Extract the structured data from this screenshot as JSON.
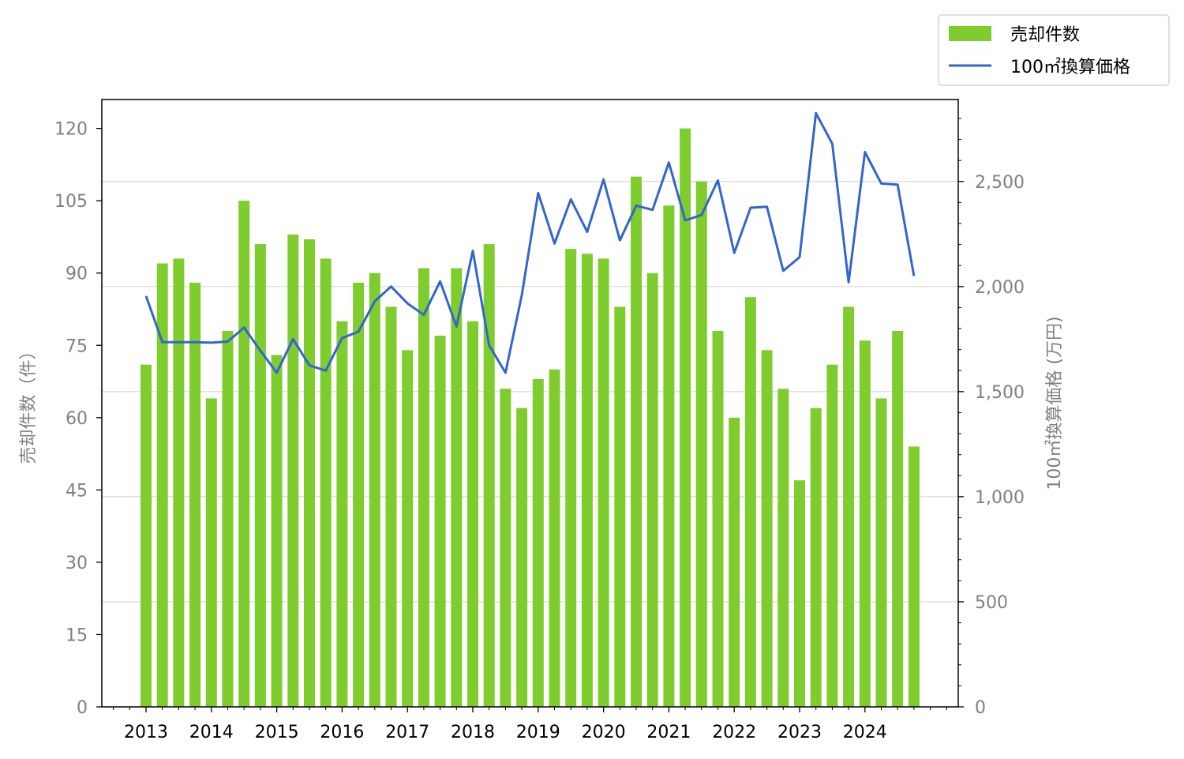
{
  "chart_data": {
    "type": "bar",
    "x": [
      "2013 Q1",
      "2013 Q2",
      "2013 Q3",
      "2013 Q4",
      "2014 Q1",
      "2014 Q2",
      "2014 Q3",
      "2014 Q4",
      "2015 Q1",
      "2015 Q2",
      "2015 Q3",
      "2015 Q4",
      "2016 Q1",
      "2016 Q2",
      "2016 Q3",
      "2016 Q4",
      "2017 Q1",
      "2017 Q2",
      "2017 Q3",
      "2017 Q4",
      "2018 Q1",
      "2018 Q2",
      "2018 Q3",
      "2018 Q4",
      "2019 Q1",
      "2019 Q2",
      "2019 Q3",
      "2019 Q4",
      "2020 Q1",
      "2020 Q2",
      "2020 Q3",
      "2020 Q4",
      "2021 Q1",
      "2021 Q2",
      "2021 Q3",
      "2021 Q4",
      "2022 Q1",
      "2022 Q2",
      "2022 Q3",
      "2022 Q4",
      "2023 Q1",
      "2023 Q2",
      "2023 Q3",
      "2023 Q4",
      "2024 Q1",
      "2024 Q2",
      "2024 Q3",
      "2024 Q4"
    ],
    "xticks": [
      "2013",
      "2014",
      "2015",
      "2016",
      "2017",
      "2018",
      "2019",
      "2020",
      "2021",
      "2022",
      "2023",
      "2024"
    ],
    "series": [
      {
        "name": "売却件数",
        "type": "bar",
        "axis": "left",
        "color": "#7fcc2e",
        "values": [
          71,
          92,
          93,
          88,
          64,
          78,
          105,
          96,
          73,
          98,
          97,
          93,
          80,
          88,
          90,
          83,
          74,
          91,
          77,
          91,
          80,
          96,
          66,
          62,
          68,
          70,
          95,
          94,
          93,
          83,
          110,
          90,
          104,
          120,
          109,
          78,
          60,
          85,
          74,
          66,
          47,
          62,
          71,
          83,
          76,
          64,
          78,
          54
        ]
      },
      {
        "name": "100㎡換算価格",
        "type": "line",
        "axis": "right",
        "color": "#3366cc",
        "values": [
          1955,
          1735,
          1735,
          1735,
          1733,
          1738,
          1805,
          1695,
          1590,
          1750,
          1625,
          1600,
          1755,
          1785,
          1930,
          2000,
          1920,
          1865,
          2025,
          1810,
          2170,
          1720,
          1590,
          1960,
          2445,
          2205,
          2415,
          2260,
          2510,
          2220,
          2385,
          2365,
          2590,
          2315,
          2340,
          2505,
          2160,
          2375,
          2380,
          2075,
          2140,
          2825,
          2680,
          2020,
          2640,
          2490,
          2485,
          2050
        ]
      }
    ],
    "ylabel": "売却件数（件）",
    "y2label": "100㎡換算価格 (万円)",
    "ylim": [
      0,
      126
    ],
    "yticks": [
      0,
      15,
      30,
      45,
      60,
      75,
      90,
      105,
      120
    ],
    "y2lim": [
      0,
      2890
    ],
    "y2ticks": [
      0,
      500,
      1000,
      1500,
      2000,
      2500
    ],
    "y2tick_labels": [
      "0",
      "500",
      "1,000",
      "1,500",
      "2,000",
      "2,500"
    ],
    "grid": "horizontal (right axis)",
    "legend": "top-right"
  }
}
